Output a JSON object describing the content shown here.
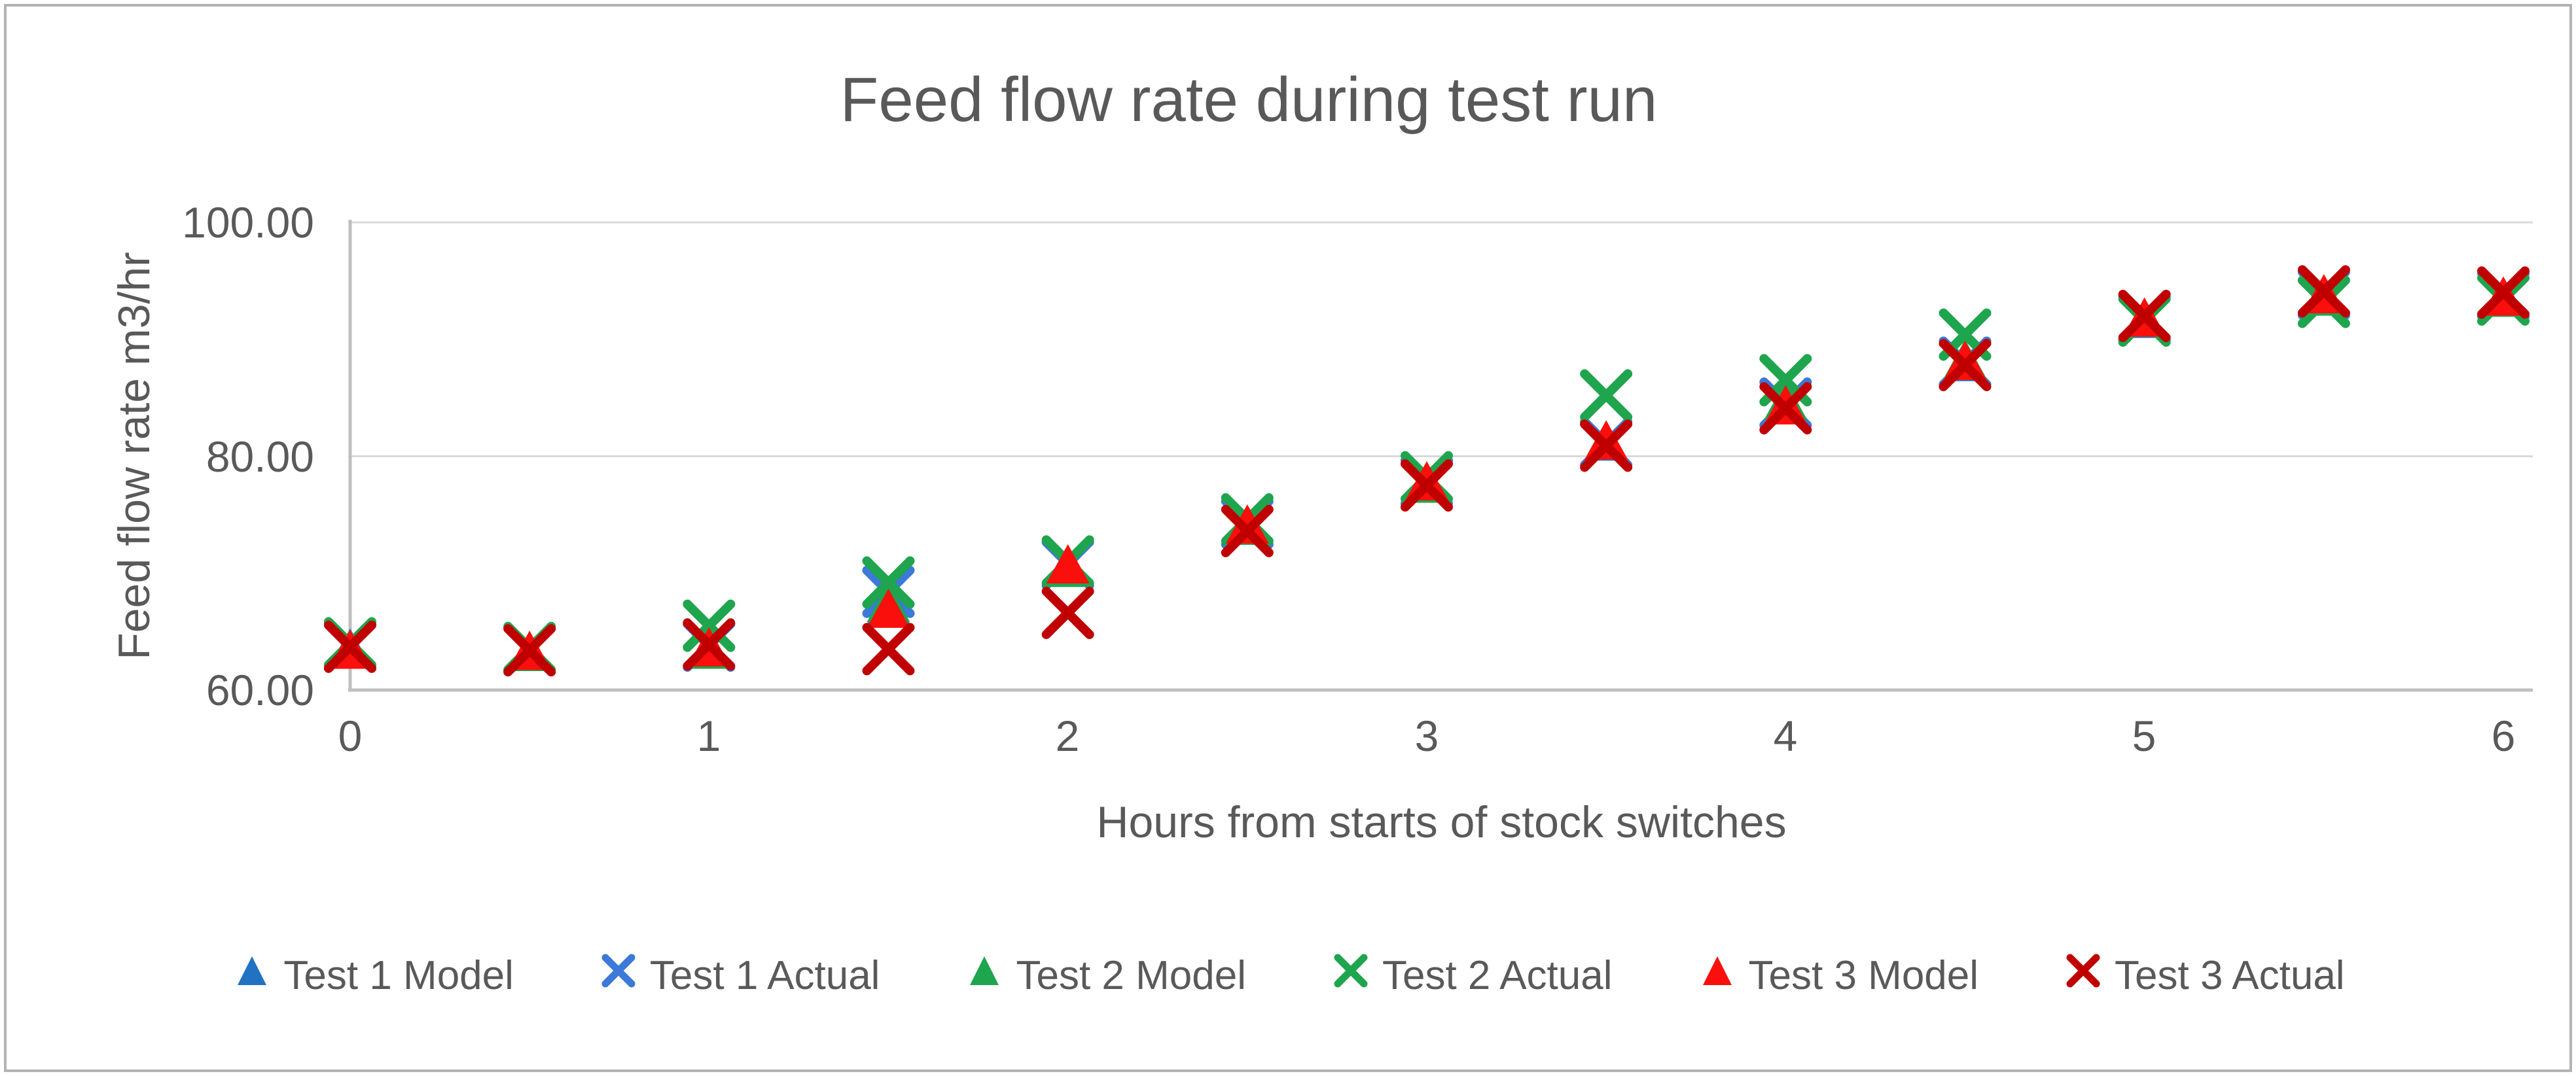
{
  "title": "Feed flow rate during test run",
  "y_axis": {
    "title": "Feed flow rate m3/hr",
    "ticks": [
      "100.00",
      "80.00",
      "60.00"
    ],
    "min": 60,
    "max": 100
  },
  "x_axis": {
    "title": "Hours from starts of stock switches",
    "ticks": [
      "0",
      "1",
      "2",
      "3",
      "4",
      "5",
      "6"
    ],
    "min": 0,
    "max": 6
  },
  "colors": {
    "test1": "#2272C3",
    "test1_actual": "#3C79D8",
    "test2": "#1FA54D",
    "test3_model": "#FA0F0C",
    "test3_actual": "#C00000",
    "text": "#595959",
    "gridline": "#D9D9D9",
    "axis_line": "#BFBFBF"
  },
  "chart_data": {
    "type": "scatter",
    "title": "Feed flow rate during test run",
    "xlabel": "Hours from starts of stock switches",
    "ylabel": "Feed flow rate m3/hr",
    "xlim": [
      0,
      6
    ],
    "ylim": [
      60,
      100
    ],
    "y_gridlines": [
      60,
      80,
      100
    ],
    "grid": "horizontal",
    "legend_position": "bottom",
    "x": [
      0,
      0.5,
      1,
      1.5,
      2,
      2.5,
      3,
      3.5,
      4,
      4.5,
      5,
      5.5,
      6
    ],
    "series": [
      {
        "name": "Test 1 Model",
        "marker": "triangle",
        "color": "#2272C3",
        "values": [
          63.6,
          63.4,
          63.6,
          67.3,
          70.7,
          74.2,
          77.8,
          81.3,
          84.6,
          88.1,
          91.8,
          93.8,
          93.7
        ]
      },
      {
        "name": "Test 1 Actual",
        "marker": "x",
        "color": "#3C79D8",
        "values": [
          63.9,
          63.5,
          63.8,
          68.4,
          70.8,
          74.3,
          77.8,
          81.1,
          84.5,
          88.0,
          91.8,
          93.9,
          93.8
        ]
      },
      {
        "name": "Test 2 Model",
        "marker": "triangle",
        "color": "#1FA54D",
        "values": [
          63.5,
          63.3,
          63.5,
          67.5,
          70.5,
          74.1,
          77.7,
          81.4,
          84.8,
          88.3,
          91.9,
          93.7,
          93.6
        ]
      },
      {
        "name": "Test 2 Actual",
        "marker": "x",
        "color": "#1FA54D",
        "values": [
          64.0,
          63.6,
          65.5,
          69.2,
          71.0,
          74.6,
          78.2,
          85.2,
          86.5,
          90.4,
          91.6,
          93.2,
          93.4
        ]
      },
      {
        "name": "Test 3 Model",
        "marker": "triangle",
        "color": "#FA0F0C",
        "values": [
          63.5,
          63.4,
          63.7,
          67.0,
          70.8,
          74.2,
          77.9,
          81.4,
          84.4,
          88.2,
          91.9,
          93.9,
          93.7
        ]
      },
      {
        "name": "Test 3 Actual",
        "marker": "x",
        "color": "#C00000",
        "values": [
          63.7,
          63.4,
          63.9,
          63.5,
          66.6,
          73.6,
          77.5,
          80.9,
          84.1,
          87.8,
          92.0,
          94.1,
          94.0
        ]
      }
    ]
  }
}
